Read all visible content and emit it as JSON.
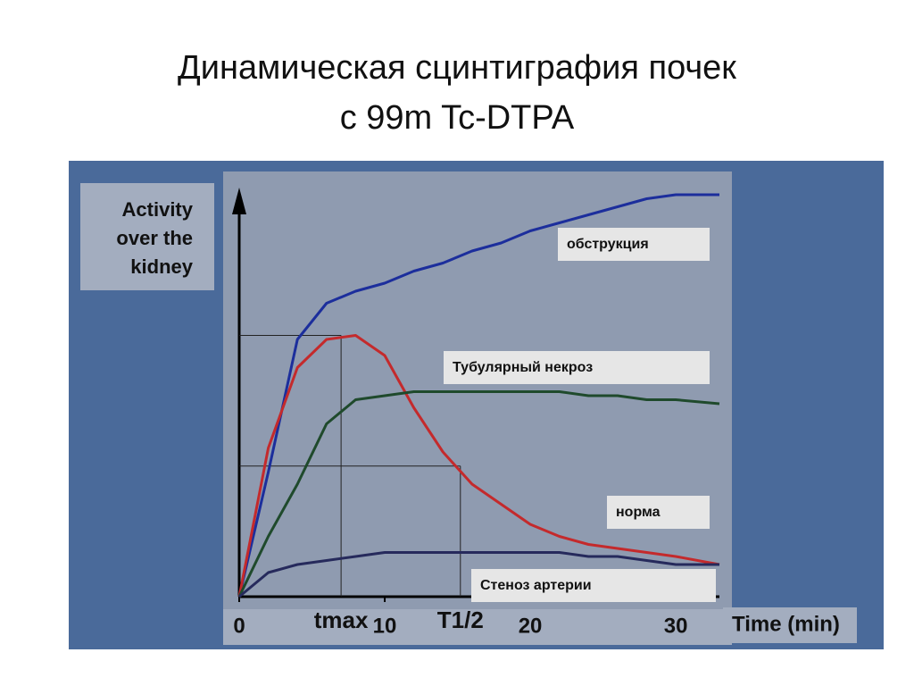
{
  "title": "Динамическая сцинтиграфия почек с 99m Tc-DTPA",
  "chart_data": {
    "type": "line",
    "y_label_lines": [
      "Activity",
      "over the",
      "kidney"
    ],
    "x_label": "Time (min)",
    "x": [
      0,
      2,
      4,
      6,
      8,
      10,
      12,
      14,
      16,
      18,
      20,
      22,
      24,
      26,
      28,
      30,
      33
    ],
    "xlim": [
      0,
      33
    ],
    "xticks": [
      0,
      10,
      20,
      30
    ],
    "ylim": [
      0,
      100
    ],
    "series": [
      {
        "name": "обструкция",
        "color": "#1c2e9c",
        "values": [
          0,
          31,
          64,
          73,
          76,
          78,
          81,
          83,
          86,
          88,
          91,
          93,
          95,
          97,
          99,
          100,
          100
        ]
      },
      {
        "name": "норма",
        "color": "#c42a2c",
        "values": [
          0,
          37,
          57,
          64,
          65,
          60,
          47,
          36,
          28,
          23,
          18,
          15,
          13,
          12,
          11,
          10,
          8
        ]
      },
      {
        "name": "Тубулярный некроз",
        "color": "#1f4a2c",
        "values": [
          0,
          15,
          28,
          43,
          49,
          50,
          51,
          51,
          51,
          51,
          51,
          51,
          50,
          50,
          49,
          49,
          48
        ]
      },
      {
        "name": "Стеноз артерии",
        "color": "#262a5c",
        "values": [
          0,
          6,
          8,
          9,
          10,
          11,
          11,
          11,
          11,
          11,
          11,
          11,
          10,
          10,
          9,
          8,
          8
        ]
      }
    ],
    "annotations": [
      {
        "text": "tmax",
        "x": 7,
        "y": 65
      },
      {
        "text": "T1/2",
        "x": 15.2,
        "y": 32.5
      }
    ]
  }
}
